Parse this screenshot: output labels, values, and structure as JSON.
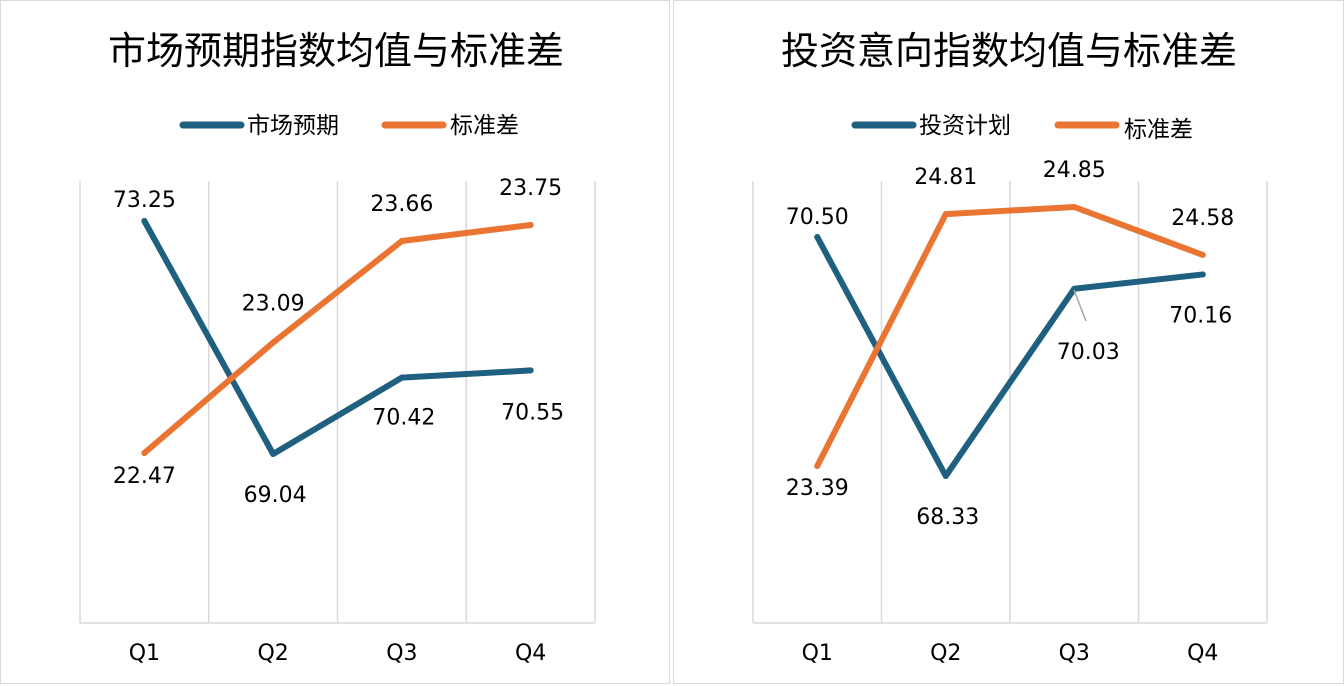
{
  "colors": {
    "primary": "#1f5f7f",
    "secondary": "#ea7533",
    "grid": "#d9d9d9"
  },
  "chart_data": [
    {
      "type": "line",
      "title": "市场预期指数均值与标准差",
      "categories": [
        "Q1",
        "Q2",
        "Q3",
        "Q4"
      ],
      "series": [
        {
          "name": "市场预期",
          "values": [
            73.25,
            69.04,
            70.42,
            70.55
          ],
          "labels": [
            "73.25",
            "69.04",
            "70.42",
            "70.55"
          ],
          "color": "#1f5f7f"
        },
        {
          "name": "标准差",
          "values": [
            22.47,
            23.09,
            23.66,
            23.75
          ],
          "labels": [
            "22.47",
            "23.09",
            "23.66",
            "23.75"
          ],
          "color": "#ea7533"
        }
      ],
      "legend": "top",
      "grid": "vertical"
    },
    {
      "type": "line",
      "title": "投资意向指数均值与标准差",
      "categories": [
        "Q1",
        "Q2",
        "Q3",
        "Q4"
      ],
      "series": [
        {
          "name": "投资计划",
          "values": [
            70.5,
            68.33,
            70.03,
            70.16
          ],
          "labels": [
            "70.50",
            "68.33",
            "70.03",
            "70.16"
          ],
          "color": "#1f5f7f"
        },
        {
          "name": "标准差",
          "values": [
            23.39,
            24.81,
            24.85,
            24.58
          ],
          "labels": [
            "23.39",
            "24.81",
            "24.85",
            "24.58"
          ],
          "color": "#ea7533"
        }
      ],
      "legend": "top",
      "grid": "vertical"
    }
  ]
}
